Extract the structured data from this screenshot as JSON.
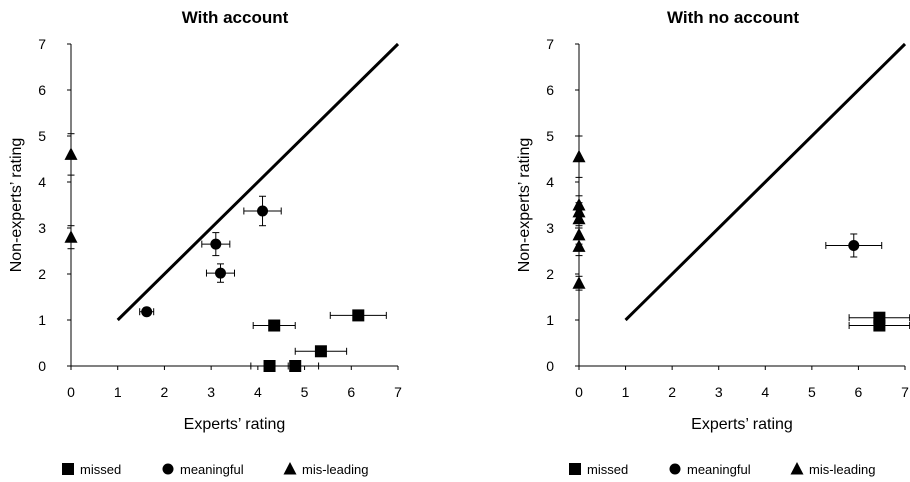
{
  "chart_data": [
    {
      "type": "scatter",
      "title": "With account",
      "xlabel": "Experts’ rating",
      "ylabel": "Non-experts’ rating",
      "xlim": [
        0,
        7
      ],
      "ylim": [
        0,
        7
      ],
      "xticks": [
        "0",
        "1",
        "2",
        "3",
        "4",
        "5",
        "6",
        "7"
      ],
      "yticks": [
        "0",
        "1",
        "2",
        "3",
        "4",
        "5",
        "6",
        "7"
      ],
      "diagonal": [
        [
          1,
          1
        ],
        [
          7,
          7
        ]
      ],
      "legend": [
        "missed",
        "meaningful",
        "mis-leading"
      ],
      "legend_position": "bottom",
      "series": [
        {
          "name": "missed",
          "marker": "square",
          "points": [
            {
              "x": 4.35,
              "y": 0.88,
              "xerr": 0.45,
              "yerr": 0
            },
            {
              "x": 6.15,
              "y": 1.1,
              "xerr": 0.6,
              "yerr": 0
            },
            {
              "x": 5.35,
              "y": 0.32,
              "xerr": 0.55,
              "yerr": 0
            },
            {
              "x": 4.25,
              "y": 0.0,
              "xerr": 0.4,
              "yerr": 0
            },
            {
              "x": 4.8,
              "y": 0.0,
              "xerr": 0.5,
              "yerr": 0
            }
          ]
        },
        {
          "name": "meaningful",
          "marker": "circle",
          "points": [
            {
              "x": 1.62,
              "y": 1.18,
              "xerr": 0.15,
              "yerr": 0.08
            },
            {
              "x": 3.1,
              "y": 2.65,
              "xerr": 0.3,
              "yerr": 0.25
            },
            {
              "x": 3.2,
              "y": 2.02,
              "xerr": 0.3,
              "yerr": 0.2
            },
            {
              "x": 4.1,
              "y": 3.37,
              "xerr": 0.4,
              "yerr": 0.32
            }
          ]
        },
        {
          "name": "mis-leading",
          "marker": "triangle",
          "points": [
            {
              "x": 0,
              "y": 4.6,
              "xerr": 0,
              "yerr": 0.45
            },
            {
              "x": 0,
              "y": 2.8,
              "xerr": 0,
              "yerr": 0.25
            }
          ]
        }
      ]
    },
    {
      "type": "scatter",
      "title": "With no account",
      "xlabel": "Experts’ rating",
      "ylabel": "Non-experts’ rating",
      "xlim": [
        0,
        7
      ],
      "ylim": [
        0,
        7
      ],
      "xticks": [
        "0",
        "1",
        "2",
        "3",
        "4",
        "5",
        "6",
        "7"
      ],
      "yticks": [
        "0",
        "1",
        "2",
        "3",
        "4",
        "5",
        "6",
        "7"
      ],
      "diagonal": [
        [
          1,
          1
        ],
        [
          7,
          7
        ]
      ],
      "legend": [
        "missed",
        "meaningful",
        "mis-leading"
      ],
      "legend_position": "bottom",
      "series": [
        {
          "name": "missed",
          "marker": "square",
          "points": [
            {
              "x": 6.45,
              "y": 1.05,
              "xerr": 0.65,
              "yerr": 0
            },
            {
              "x": 6.45,
              "y": 0.88,
              "xerr": 0.65,
              "yerr": 0
            }
          ]
        },
        {
          "name": "meaningful",
          "marker": "circle",
          "points": [
            {
              "x": 5.9,
              "y": 2.62,
              "xerr": 0.6,
              "yerr": 0.25
            }
          ]
        },
        {
          "name": "mis-leading",
          "marker": "triangle",
          "points": [
            {
              "x": 0,
              "y": 4.55,
              "xerr": 0,
              "yerr": 0.45
            },
            {
              "x": 0,
              "y": 3.5,
              "xerr": 0,
              "yerr": 0.2
            },
            {
              "x": 0,
              "y": 3.35,
              "xerr": 0,
              "yerr": 0.2
            },
            {
              "x": 0,
              "y": 3.2,
              "xerr": 0,
              "yerr": 0.2
            },
            {
              "x": 0,
              "y": 2.85,
              "xerr": 0,
              "yerr": 0.2
            },
            {
              "x": 0,
              "y": 2.6,
              "xerr": 0,
              "yerr": 0.2
            },
            {
              "x": 0,
              "y": 1.8,
              "xerr": 0,
              "yerr": 0.15
            }
          ]
        }
      ]
    }
  ]
}
